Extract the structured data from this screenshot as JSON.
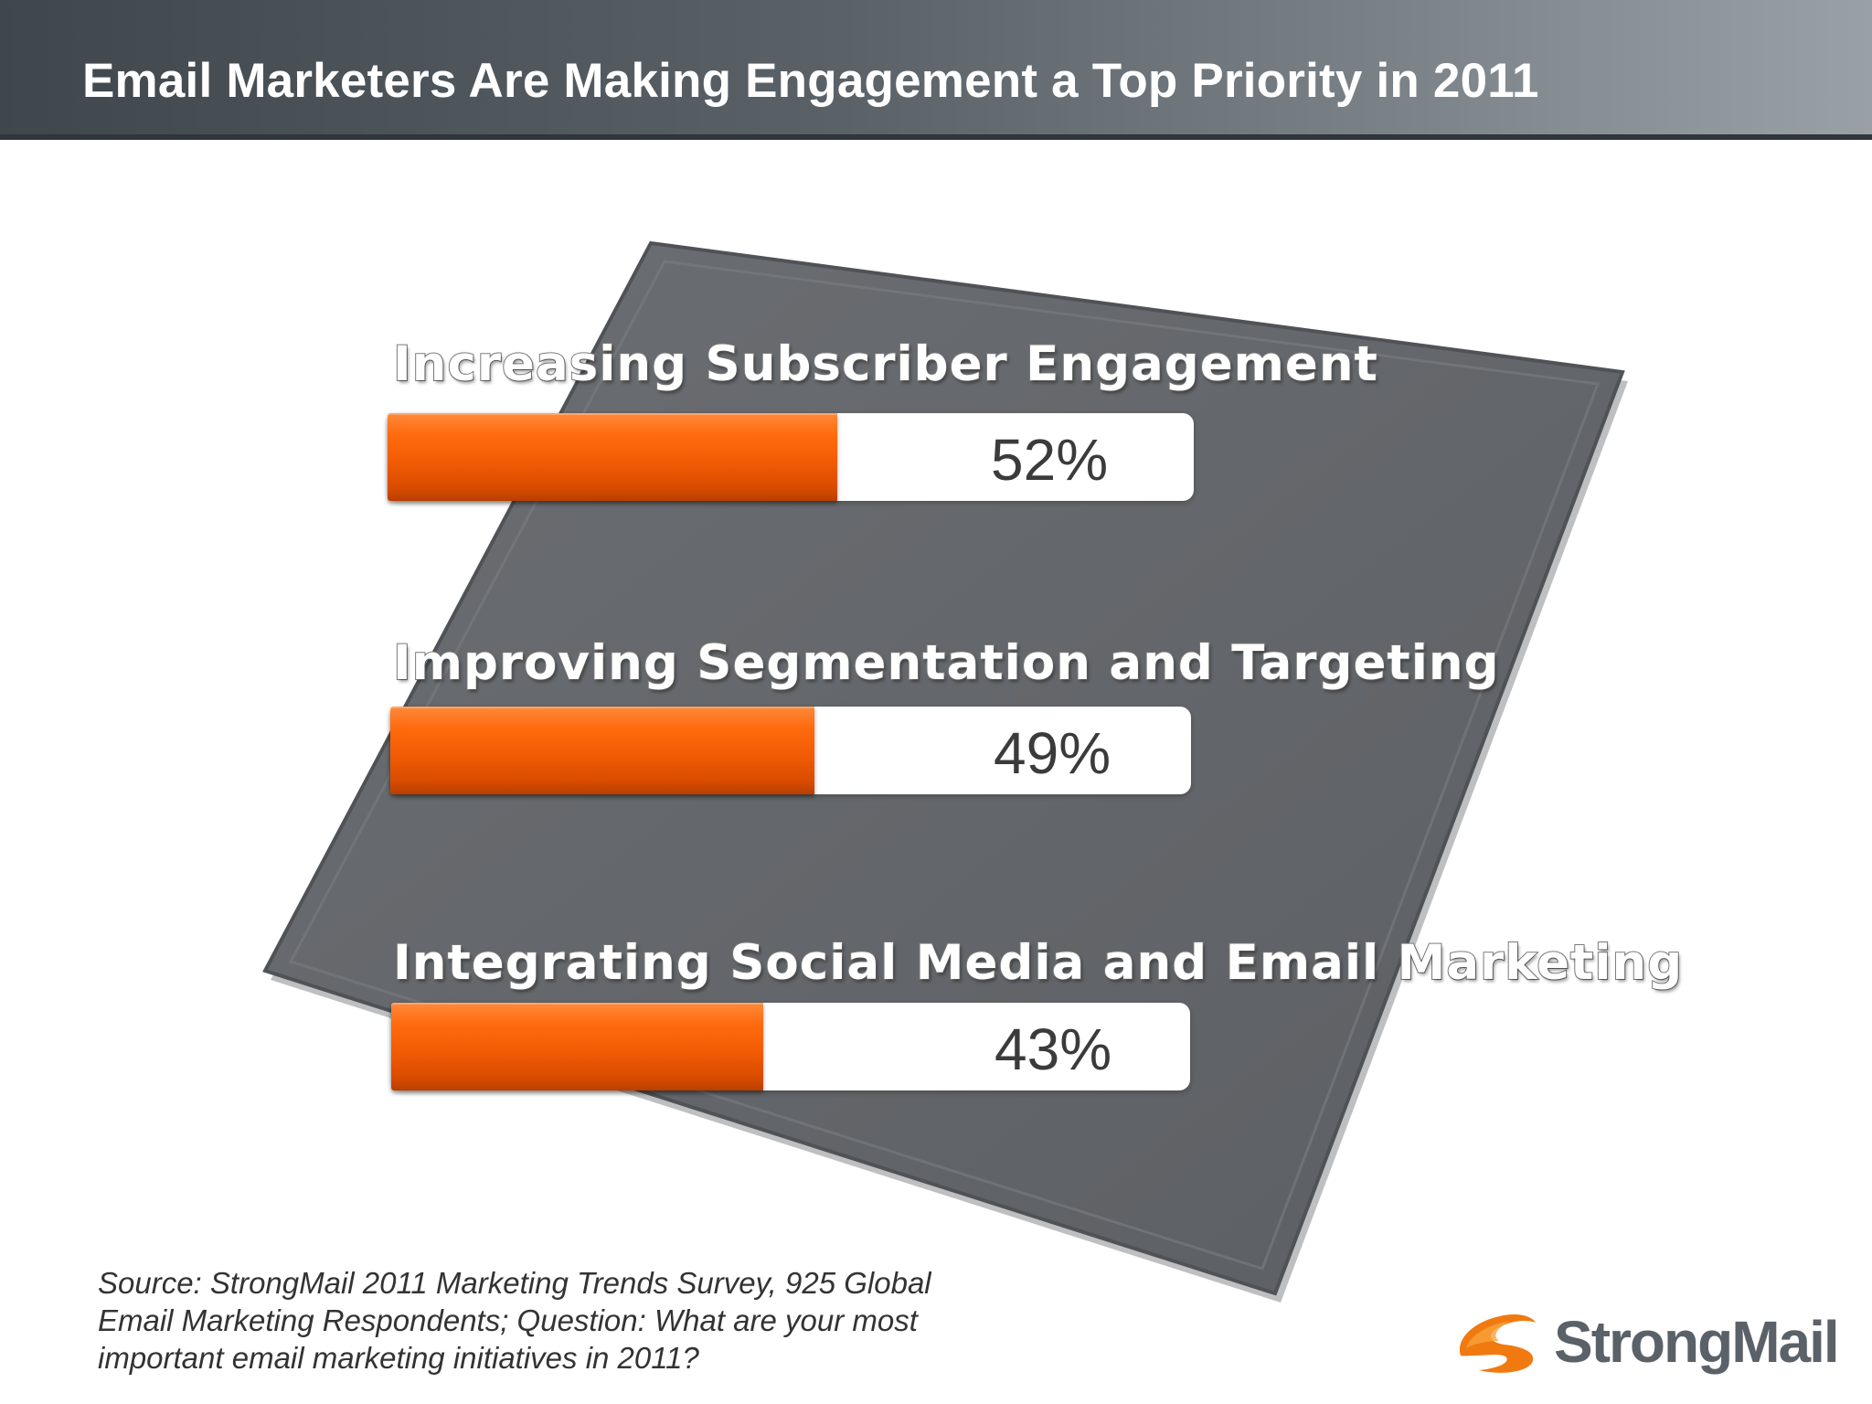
{
  "header": {
    "title": "Email Marketers Are Making Engagement a Top Priority in 2011"
  },
  "chart_data": {
    "type": "bar",
    "orientation": "horizontal",
    "categories": [
      "Increasing Subscriber Engagement",
      "Improving Segmentation and Targeting",
      "Integrating Social Media and Email Marketing"
    ],
    "values": [
      52,
      49,
      43
    ],
    "value_labels": [
      "52%",
      "49%",
      "43%"
    ],
    "unit": "%",
    "xlim": [
      0,
      100
    ],
    "title": "Email Marketers Are Making Engagement a Top Priority in 2011",
    "xlabel": "",
    "ylabel": "",
    "grid": false,
    "legend": "none",
    "bar_color": "#f25c05",
    "track_color": "#ffffff"
  },
  "footer": {
    "source": "Source: StrongMail 2011 Marketing Trends Survey, 925 Global Email Marketing Respondents; Question: What are your most important email marketing initiatives in 2011?"
  },
  "logo": {
    "text": "StrongMail",
    "icon": "swoosh-logo-icon",
    "accent": "#f07a10",
    "text_color": "#5a6168"
  }
}
